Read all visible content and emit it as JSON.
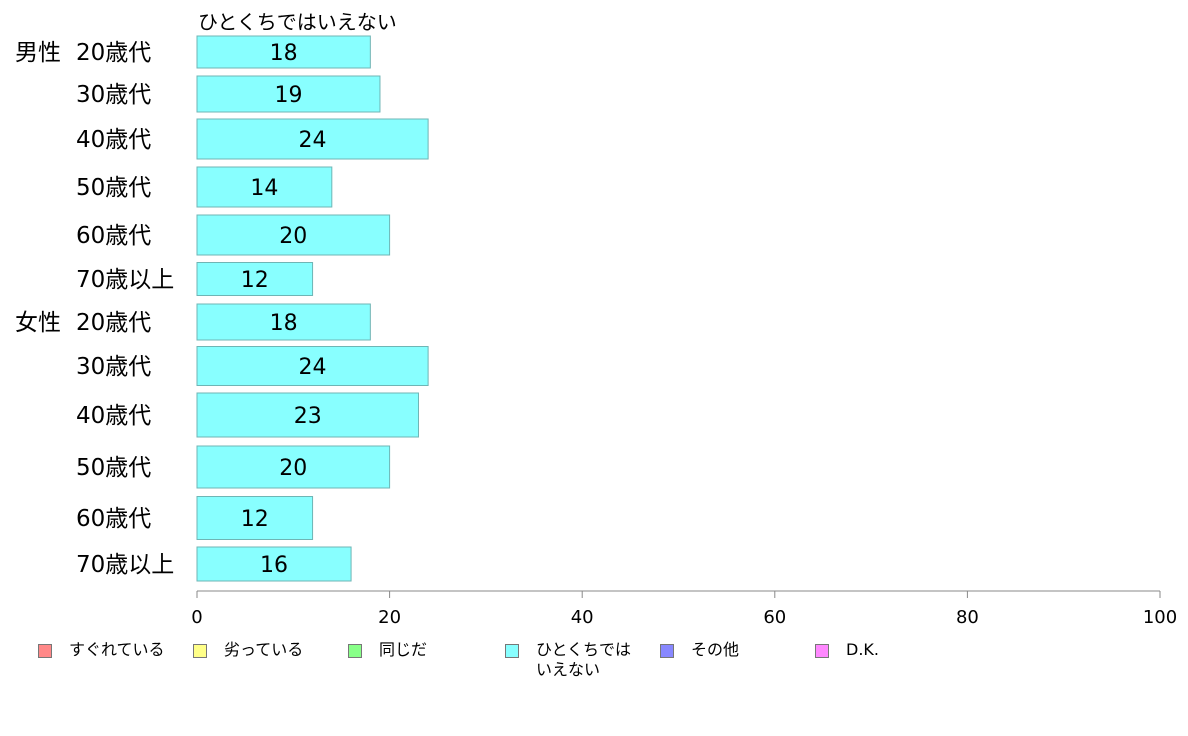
{
  "series_title": "ひとくちではいえない",
  "chart_data": {
    "type": "bar",
    "orientation": "horizontal",
    "categories": [
      {
        "group": "男性",
        "label": "20歳代"
      },
      {
        "group": "",
        "label": "30歳代"
      },
      {
        "group": "",
        "label": "40歳代"
      },
      {
        "group": "",
        "label": "50歳代"
      },
      {
        "group": "",
        "label": "60歳代"
      },
      {
        "group": "",
        "label": "70歳以上"
      },
      {
        "group": "女性",
        "label": "20歳代"
      },
      {
        "group": "",
        "label": "30歳代"
      },
      {
        "group": "",
        "label": "40歳代"
      },
      {
        "group": "",
        "label": "50歳代"
      },
      {
        "group": "",
        "label": "60歳代"
      },
      {
        "group": "",
        "label": "70歳以上"
      }
    ],
    "series": [
      {
        "name": "ひとくちではいえない",
        "color": "#88ffff",
        "values": [
          18,
          19,
          24,
          14,
          20,
          12,
          18,
          24,
          23,
          20,
          12,
          16
        ]
      }
    ],
    "xlim": [
      0,
      100
    ],
    "xticks": [
      0,
      20,
      40,
      60,
      80,
      100
    ],
    "grid": false,
    "legend_position": "bottom"
  },
  "legend": [
    {
      "label": "すぐれている",
      "color": "#ff8888"
    },
    {
      "label": "劣っている",
      "color": "#ffff88"
    },
    {
      "label": "同じだ",
      "color": "#88ff88"
    },
    {
      "label": "ひとくちでは\nいえない",
      "color": "#88ffff"
    },
    {
      "label": "その他",
      "color": "#8888ff"
    },
    {
      "label": "D.K.",
      "color": "#ff88ff"
    }
  ]
}
